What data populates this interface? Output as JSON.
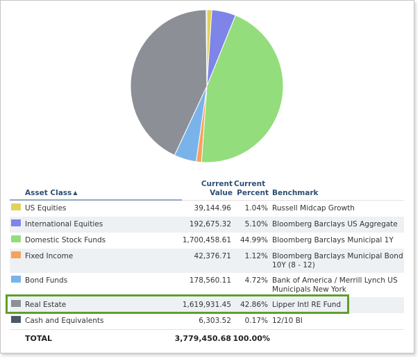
{
  "chart_data": {
    "type": "pie",
    "title": "",
    "start_angle": "12 o'clock",
    "direction": "clockwise",
    "slices": [
      {
        "label": "US Equities",
        "value": 39144.96,
        "percent": 1.04,
        "color": "#e2d05a"
      },
      {
        "label": "International Equities",
        "value": 192675.32,
        "percent": 5.1,
        "color": "#7f84e8"
      },
      {
        "label": "Domestic Stock Funds",
        "value": 1700458.61,
        "percent": 44.99,
        "color": "#93dd7c"
      },
      {
        "label": "Fixed Income",
        "value": 42376.71,
        "percent": 1.12,
        "color": "#f7a25c"
      },
      {
        "label": "Bond Funds",
        "value": 178560.11,
        "percent": 4.72,
        "color": "#7ab3ea"
      },
      {
        "label": "Real Estate",
        "value": 1619931.45,
        "percent": 42.86,
        "color": "#8c9096"
      },
      {
        "label": "Cash and Equivalents",
        "value": 6303.52,
        "percent": 0.17,
        "color": "#4c5968"
      }
    ]
  },
  "table": {
    "headers": {
      "asset_class": "Asset Class",
      "value_line1": "Current",
      "value_line2": "Value",
      "percent_line1": "Current",
      "percent_line2": "Percent",
      "benchmark": "Benchmark"
    },
    "sort_indicator": "▲",
    "rows": [
      {
        "name": "US Equities",
        "value": "39,144.96",
        "percent": "1.04%",
        "benchmark": "Russell Midcap Growth",
        "color": "#e2d05a"
      },
      {
        "name": "International Equities",
        "value": "192,675.32",
        "percent": "5.10%",
        "benchmark": "Bloomberg Barclays US Aggregate",
        "color": "#7f84e8"
      },
      {
        "name": "Domestic Stock Funds",
        "value": "1,700,458.61",
        "percent": "44.99%",
        "benchmark": "Bloomberg Barclays Municipal 1Y",
        "color": "#93dd7c"
      },
      {
        "name": "Fixed Income",
        "value": "42,376.71",
        "percent": "1.12%",
        "benchmark": "Bloomberg Barclays Municipal Bond 10Y (8 - 12)",
        "color": "#f7a25c"
      },
      {
        "name": "Bond Funds",
        "value": "178,560.11",
        "percent": "4.72%",
        "benchmark": "Bank of America / Merrill Lynch US Municipals New York",
        "color": "#7ab3ea"
      },
      {
        "name": "Real Estate",
        "value": "1,619,931.45",
        "percent": "42.86%",
        "benchmark": "Lipper Intl RE Fund",
        "color": "#8c9096"
      },
      {
        "name": "Cash and Equivalents",
        "value": "6,303.52",
        "percent": "0.17%",
        "benchmark": "12/10 BI",
        "color": "#4c5968"
      }
    ],
    "total": {
      "label": "TOTAL",
      "value": "3,779,450.68",
      "percent": "100.00%"
    }
  },
  "highlight_color": "#5f9e2c"
}
